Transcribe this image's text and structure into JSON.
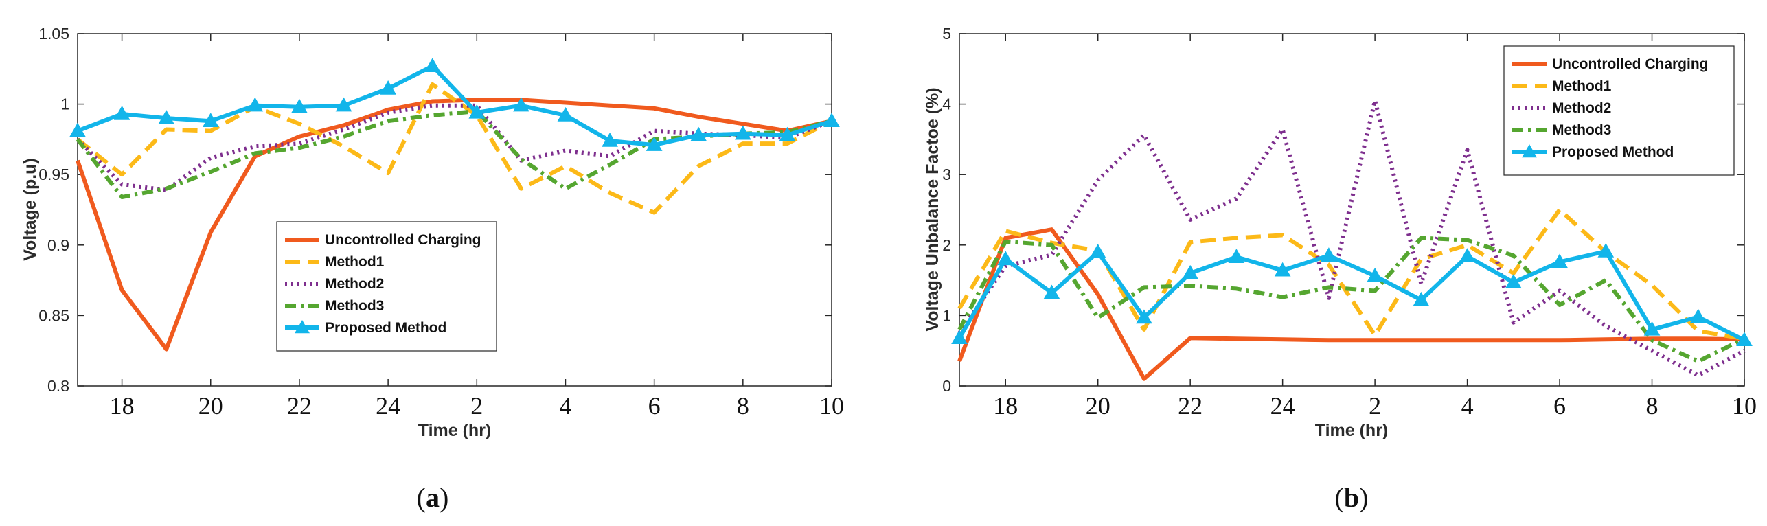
{
  "chart_data": [
    {
      "type": "line",
      "caption_letter": "a",
      "ylabel": "Voltage (p.u)",
      "xlabel": "Time (hr)",
      "ylim": [
        0.8,
        1.05
      ],
      "yticks": [
        0.8,
        0.85,
        0.9,
        0.95,
        1,
        1.05
      ],
      "ytick_labels": [
        "0.8",
        "0.85",
        "0.9",
        "0.95",
        "1",
        "1.05"
      ],
      "x_count": 18,
      "xtick_positions": [
        1,
        3,
        5,
        7,
        9,
        11,
        13,
        15,
        17
      ],
      "xtick_labels": [
        "18",
        "20",
        "22",
        "24",
        "2",
        "4",
        "6",
        "8",
        "10"
      ],
      "legend_position": "center",
      "series": [
        {
          "name": "Uncontrolled Charging",
          "values": [
            0.96,
            0.868,
            0.826,
            0.909,
            0.963,
            0.977,
            0.985,
            0.996,
            1.002,
            1.003,
            1.003,
            1.001,
            0.999,
            0.997,
            0.991,
            0.986,
            0.981,
            0.988
          ]
        },
        {
          "name": "Method1",
          "values": [
            0.975,
            0.95,
            0.982,
            0.981,
            0.998,
            0.986,
            0.97,
            0.951,
            1.014,
            0.992,
            0.94,
            0.956,
            0.937,
            0.923,
            0.956,
            0.972,
            0.972,
            0.988
          ]
        },
        {
          "name": "Method2",
          "values": [
            0.975,
            0.943,
            0.939,
            0.962,
            0.97,
            0.972,
            0.982,
            0.994,
            0.999,
            0.999,
            0.96,
            0.967,
            0.963,
            0.981,
            0.979,
            0.978,
            0.976,
            0.988
          ]
        },
        {
          "name": "Method3",
          "values": [
            0.975,
            0.934,
            0.94,
            0.952,
            0.965,
            0.969,
            0.977,
            0.988,
            0.992,
            0.995,
            0.961,
            0.94,
            0.957,
            0.975,
            0.977,
            0.979,
            0.98,
            0.988
          ]
        },
        {
          "name": "Proposed Method",
          "values": [
            0.981,
            0.993,
            0.99,
            0.988,
            0.999,
            0.998,
            0.999,
            1.011,
            1.027,
            0.994,
            0.999,
            0.992,
            0.974,
            0.971,
            0.978,
            0.979,
            0.978,
            0.988
          ]
        }
      ]
    },
    {
      "type": "line",
      "caption_letter": "b",
      "ylabel": "Voltage Unbalance Factoe (%)",
      "xlabel": "Time (hr)",
      "ylim": [
        0,
        5
      ],
      "yticks": [
        0,
        1,
        2,
        3,
        4,
        5
      ],
      "ytick_labels": [
        "0",
        "1",
        "2",
        "3",
        "4",
        "5"
      ],
      "x_count": 18,
      "xtick_positions": [
        1,
        3,
        5,
        7,
        9,
        11,
        13,
        15,
        17
      ],
      "xtick_labels": [
        "18",
        "20",
        "22",
        "24",
        "2",
        "4",
        "6",
        "8",
        "10"
      ],
      "legend_position": "top-right",
      "series": [
        {
          "name": "Uncontrolled Charging",
          "values": [
            0.35,
            2.1,
            2.22,
            1.3,
            0.1,
            0.68,
            0.67,
            0.66,
            0.65,
            0.65,
            0.65,
            0.65,
            0.65,
            0.65,
            0.66,
            0.67,
            0.67,
            0.66
          ]
        },
        {
          "name": "Method1",
          "values": [
            1.1,
            2.2,
            2.03,
            1.92,
            0.8,
            2.04,
            2.1,
            2.14,
            1.72,
            0.72,
            1.8,
            2.0,
            1.6,
            2.5,
            1.9,
            1.43,
            0.78,
            0.67
          ]
        },
        {
          "name": "Method2",
          "values": [
            0.75,
            1.7,
            1.86,
            2.92,
            3.56,
            2.36,
            2.66,
            3.64,
            1.25,
            4.05,
            1.45,
            3.35,
            0.9,
            1.35,
            0.85,
            0.5,
            0.15,
            0.5
          ]
        },
        {
          "name": "Method3",
          "values": [
            0.8,
            2.05,
            2.0,
            0.97,
            1.4,
            1.42,
            1.38,
            1.26,
            1.4,
            1.35,
            2.1,
            2.07,
            1.85,
            1.15,
            1.5,
            0.65,
            0.35,
            0.67
          ]
        },
        {
          "name": "Proposed Method",
          "values": [
            0.68,
            1.8,
            1.32,
            1.9,
            0.97,
            1.6,
            1.83,
            1.64,
            1.85,
            1.56,
            1.22,
            1.84,
            1.47,
            1.76,
            1.91,
            0.8,
            0.98,
            0.65
          ]
        }
      ]
    }
  ],
  "styles": {
    "Uncontrolled Charging": {
      "color": "#f05a1e",
      "dash": "none"
    },
    "Method1": {
      "color": "#fcb918",
      "dash": "22 11"
    },
    "Method2": {
      "color": "#7e2f8e",
      "dash": "3 6"
    },
    "Method3": {
      "color": "#55a630",
      "dash": "16 7 4 7"
    },
    "Proposed Method": {
      "color": "#12b5ea",
      "dash": "none",
      "marker": "triangle"
    }
  }
}
